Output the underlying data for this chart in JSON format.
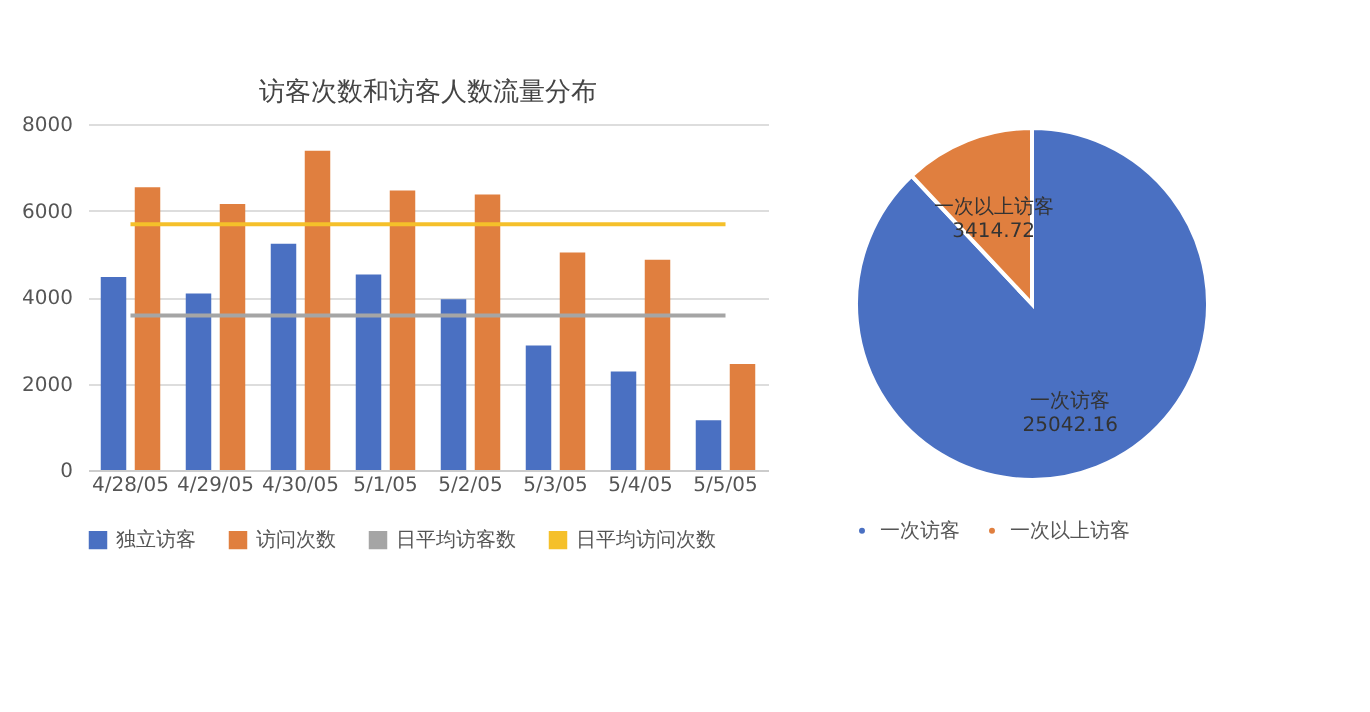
{
  "chart_data": [
    {
      "type": "bar",
      "title": "访客次数和访客人数流量分布",
      "categories": [
        "4/28/05",
        "4/29/05",
        "4/30/05",
        "5/1/05",
        "5/2/05",
        "5/3/05",
        "5/4/05",
        "5/5/05"
      ],
      "series": [
        {
          "name": "独立访客",
          "color": "#4a70c2",
          "values": [
            4460,
            4080,
            5230,
            4520,
            3950,
            2880,
            2280,
            1150
          ]
        },
        {
          "name": "访问次数",
          "color": "#e07f3f",
          "values": [
            6540,
            6150,
            7380,
            6460,
            6370,
            5030,
            4860,
            2450
          ]
        },
        {
          "name": "日平均访客数",
          "type": "line",
          "color": "#a5a5a5",
          "values": [
            3570,
            3570,
            3570,
            3570,
            3570,
            3570,
            3570,
            3570
          ]
        },
        {
          "name": "日平均访问次数",
          "type": "line",
          "color": "#f5c02a",
          "values": [
            5680,
            5680,
            5680,
            5680,
            5680,
            5680,
            5680,
            5680
          ]
        }
      ],
      "ylim": [
        0,
        8000
      ],
      "yticks": [
        0,
        2000,
        4000,
        6000,
        8000
      ],
      "grid": "y",
      "legend": "bottom"
    },
    {
      "type": "pie",
      "categories": [
        "一次访客",
        "一次以上访客"
      ],
      "values": [
        25042.16,
        3414.72
      ],
      "colors": [
        "#4a70c2",
        "#e07f3f"
      ],
      "data_labels": true,
      "legend": "bottom"
    }
  ]
}
